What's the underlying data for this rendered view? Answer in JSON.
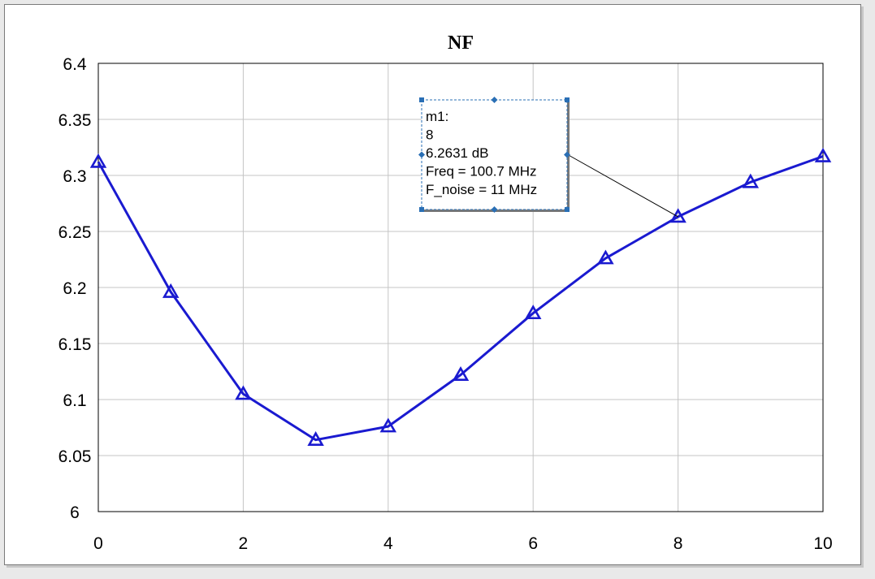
{
  "chart_data": {
    "type": "line",
    "title": "NF",
    "xlabel": "",
    "ylabel": "",
    "xlim": [
      0,
      10
    ],
    "ylim": [
      6,
      6.4
    ],
    "x_ticks": [
      "0",
      "2",
      "4",
      "6",
      "8",
      "10"
    ],
    "y_ticks": [
      "6",
      "6.05",
      "6.1",
      "6.15",
      "6.2",
      "6.25",
      "6.3",
      "6.35",
      "6.4"
    ],
    "grid": true,
    "series": [
      {
        "x": [
          0,
          1,
          2,
          3,
          4,
          5,
          6,
          7,
          8,
          9,
          10
        ],
        "values": [
          6.312,
          6.196,
          6.105,
          6.064,
          6.076,
          6.122,
          6.177,
          6.226,
          6.2631,
          6.294,
          6.317
        ],
        "color": "#1a1ad0",
        "marker": "triangle"
      }
    ],
    "marker_label": {
      "x": 8,
      "lines": [
        "m1:",
        "8",
        "6.2631 dB",
        "Freq = 100.7 MHz",
        "F_noise = 11 MHz"
      ]
    }
  }
}
